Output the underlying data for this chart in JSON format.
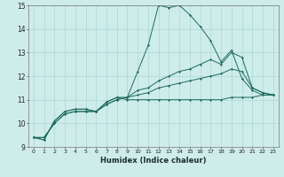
{
  "xlabel": "Humidex (Indice chaleur)",
  "xlim": [
    -0.5,
    23.5
  ],
  "ylim": [
    9,
    15
  ],
  "xticks": [
    0,
    1,
    2,
    3,
    4,
    5,
    6,
    7,
    8,
    9,
    10,
    11,
    12,
    13,
    14,
    15,
    16,
    17,
    18,
    19,
    20,
    21,
    22,
    23
  ],
  "yticks": [
    9,
    10,
    11,
    12,
    13,
    14,
    15
  ],
  "background_color": "#ceecea",
  "grid_color": "#a8d8d4",
  "line_color": "#1e6b5e",
  "series": [
    [
      9.4,
      9.3,
      10.1,
      10.5,
      10.6,
      10.6,
      10.5,
      10.9,
      11.1,
      11.1,
      12.2,
      13.3,
      15.0,
      14.9,
      15.0,
      14.6,
      14.1,
      13.5,
      12.6,
      13.1,
      11.9,
      11.4,
      11.2,
      11.2
    ],
    [
      9.4,
      9.3,
      10.1,
      10.5,
      10.6,
      10.6,
      10.5,
      10.9,
      11.1,
      11.0,
      11.0,
      11.0,
      11.0,
      11.0,
      11.0,
      11.0,
      11.0,
      11.0,
      11.0,
      11.1,
      11.1,
      11.1,
      11.2,
      11.2
    ],
    [
      9.4,
      9.4,
      10.0,
      10.4,
      10.5,
      10.5,
      10.5,
      10.8,
      11.0,
      11.1,
      11.4,
      11.5,
      11.8,
      12.0,
      12.2,
      12.3,
      12.5,
      12.7,
      12.5,
      13.0,
      12.8,
      11.5,
      11.3,
      11.2
    ],
    [
      9.4,
      9.4,
      10.0,
      10.4,
      10.5,
      10.5,
      10.5,
      10.8,
      11.0,
      11.1,
      11.2,
      11.3,
      11.5,
      11.6,
      11.7,
      11.8,
      11.9,
      12.0,
      12.1,
      12.3,
      12.2,
      11.5,
      11.3,
      11.2
    ]
  ]
}
